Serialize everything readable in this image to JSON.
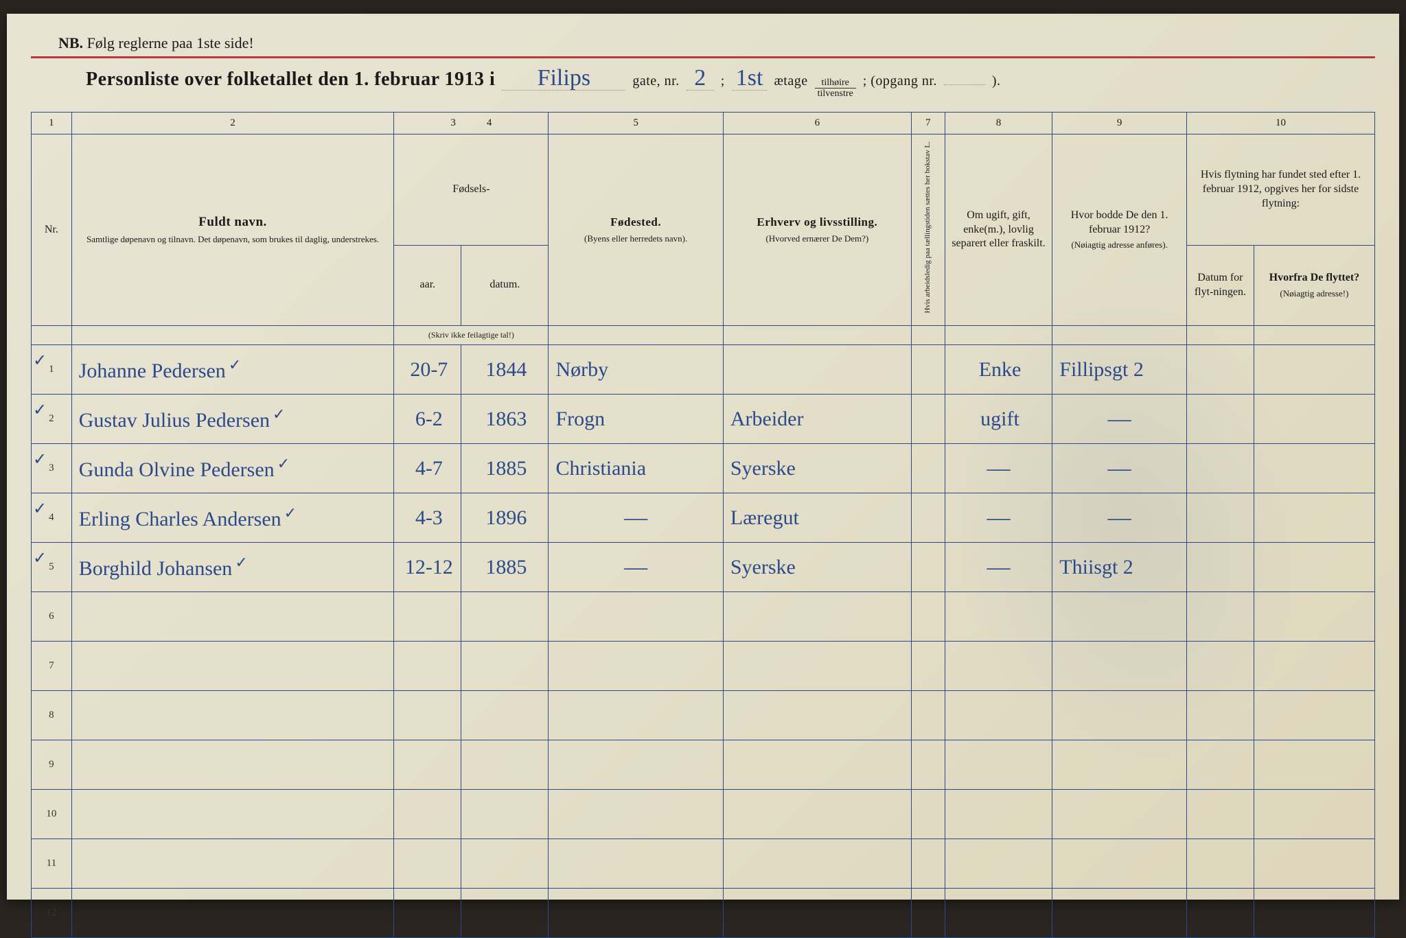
{
  "header": {
    "nb_prefix": "NB.",
    "nb_text": "Følg reglerne paa 1ste side!",
    "title_prefix": "Personliste over folketallet den 1. februar 1913 i",
    "street": "Filips",
    "gate_label": "gate, nr.",
    "gate_nr": "2",
    "semicolon": ";",
    "etage_hw": "1st",
    "etage_label": "ætage",
    "tilhoire": "tilhøire",
    "tilvenstre": "tilvenstre",
    "opgang_label": "; (opgang nr.",
    "opgang_nr": "",
    "closing": ")."
  },
  "colnums": [
    "1",
    "2",
    "3",
    "4",
    "5",
    "6",
    "7",
    "8",
    "9",
    "10"
  ],
  "headers": {
    "nr": "Nr.",
    "name_strong": "Fuldt navn.",
    "name_sub": "Samtlige døpenavn og tilnavn. Det døpenavn, som brukes til daglig, understrekes.",
    "fodsels": "Fødsels-",
    "aar": "aar.",
    "datum": "datum.",
    "aar_sub": "(Skriv ikke feilagtige tal!)",
    "fodested": "Fødested.",
    "fodested_sub": "(Byens eller herredets navn).",
    "erhverv": "Erhverv og livsstilling.",
    "erhverv_sub": "(Hvorved ernærer De Dem?)",
    "col7": "Hvis arbeidsledig paa tællingstiden sættes her bokstav L.",
    "col8": "Om ugift, gift, enke(m.), lovlig separert eller fraskilt.",
    "col9": "Hvor bodde De den 1. februar 1912?",
    "col9_sub": "(Nøiagtig adresse anføres).",
    "col10_top": "Hvis flytning har fundet sted efter 1. februar 1912, opgives her for sidste flytning:",
    "col10a": "Datum for flyt-ningen.",
    "col10b": "Hvorfra De flyttet?",
    "col10b_sub": "(Nøiagtig adresse!)"
  },
  "rows": [
    {
      "nr": "1",
      "tick": "✓",
      "name": "Johanne Pedersen",
      "chk": "✓",
      "aar": "20-7",
      "datum": "1844",
      "fodested": "Nørby",
      "erhverv": "",
      "c7": "",
      "c8": "Enke",
      "c9": "Fillipsgt 2",
      "c10a": "",
      "c10b": ""
    },
    {
      "nr": "2",
      "tick": "✓",
      "name": "Gustav Julius Pedersen",
      "chk": "✓",
      "aar": "6-2",
      "datum": "1863",
      "fodested": "Frogn",
      "erhverv": "Arbeider",
      "c7": "",
      "c8": "ugift",
      "c9": "—",
      "c10a": "",
      "c10b": ""
    },
    {
      "nr": "3",
      "tick": "✓",
      "name": "Gunda Olvine Pedersen",
      "chk": "✓",
      "aar": "4-7",
      "datum": "1885",
      "fodested": "Christiania",
      "erhverv": "Syerske",
      "c7": "",
      "c8": "—",
      "c9": "—",
      "c10a": "",
      "c10b": ""
    },
    {
      "nr": "4",
      "tick": "✓",
      "name": "Erling Charles Andersen",
      "chk": "✓",
      "aar": "4-3",
      "datum": "1896",
      "fodested": "—",
      "erhverv": "Læregut",
      "c7": "",
      "c8": "—",
      "c9": "—",
      "c10a": "",
      "c10b": ""
    },
    {
      "nr": "5",
      "tick": "✓",
      "name": "Borghild Johansen",
      "chk": "✓",
      "aar": "12-12",
      "datum": "1885",
      "fodested": "—",
      "erhverv": "Syerske",
      "c7": "",
      "c8": "—",
      "c9": "Thiisgt 2",
      "c10a": "",
      "c10b": ""
    },
    {
      "nr": "6",
      "tick": "",
      "name": "",
      "chk": "",
      "aar": "",
      "datum": "",
      "fodested": "",
      "erhverv": "",
      "c7": "",
      "c8": "",
      "c9": "",
      "c10a": "",
      "c10b": ""
    },
    {
      "nr": "7",
      "tick": "",
      "name": "",
      "chk": "",
      "aar": "",
      "datum": "",
      "fodested": "",
      "erhverv": "",
      "c7": "",
      "c8": "",
      "c9": "",
      "c10a": "",
      "c10b": ""
    },
    {
      "nr": "8",
      "tick": "",
      "name": "",
      "chk": "",
      "aar": "",
      "datum": "",
      "fodested": "",
      "erhverv": "",
      "c7": "",
      "c8": "",
      "c9": "",
      "c10a": "",
      "c10b": ""
    },
    {
      "nr": "9",
      "tick": "",
      "name": "",
      "chk": "",
      "aar": "",
      "datum": "",
      "fodested": "",
      "erhverv": "",
      "c7": "",
      "c8": "",
      "c9": "",
      "c10a": "",
      "c10b": ""
    },
    {
      "nr": "10",
      "tick": "",
      "name": "",
      "chk": "",
      "aar": "",
      "datum": "",
      "fodested": "",
      "erhverv": "",
      "c7": "",
      "c8": "",
      "c9": "",
      "c10a": "",
      "c10b": ""
    },
    {
      "nr": "11",
      "tick": "",
      "name": "",
      "chk": "",
      "aar": "",
      "datum": "",
      "fodested": "",
      "erhverv": "",
      "c7": "",
      "c8": "",
      "c9": "",
      "c10a": "",
      "c10b": ""
    },
    {
      "nr": "12",
      "tick": "",
      "name": "",
      "chk": "",
      "aar": "",
      "datum": "",
      "fodested": "",
      "erhverv": "",
      "c7": "",
      "c8": "",
      "c9": "",
      "c10a": "",
      "c10b": ""
    }
  ],
  "style": {
    "ink_color": "#2a4a8a",
    "rule_color": "#b83a3a",
    "paper_bg": "#e4dfc9",
    "col_widths_pct": [
      3,
      24,
      5,
      6.5,
      13,
      14,
      2.5,
      8,
      10,
      5,
      9
    ]
  }
}
